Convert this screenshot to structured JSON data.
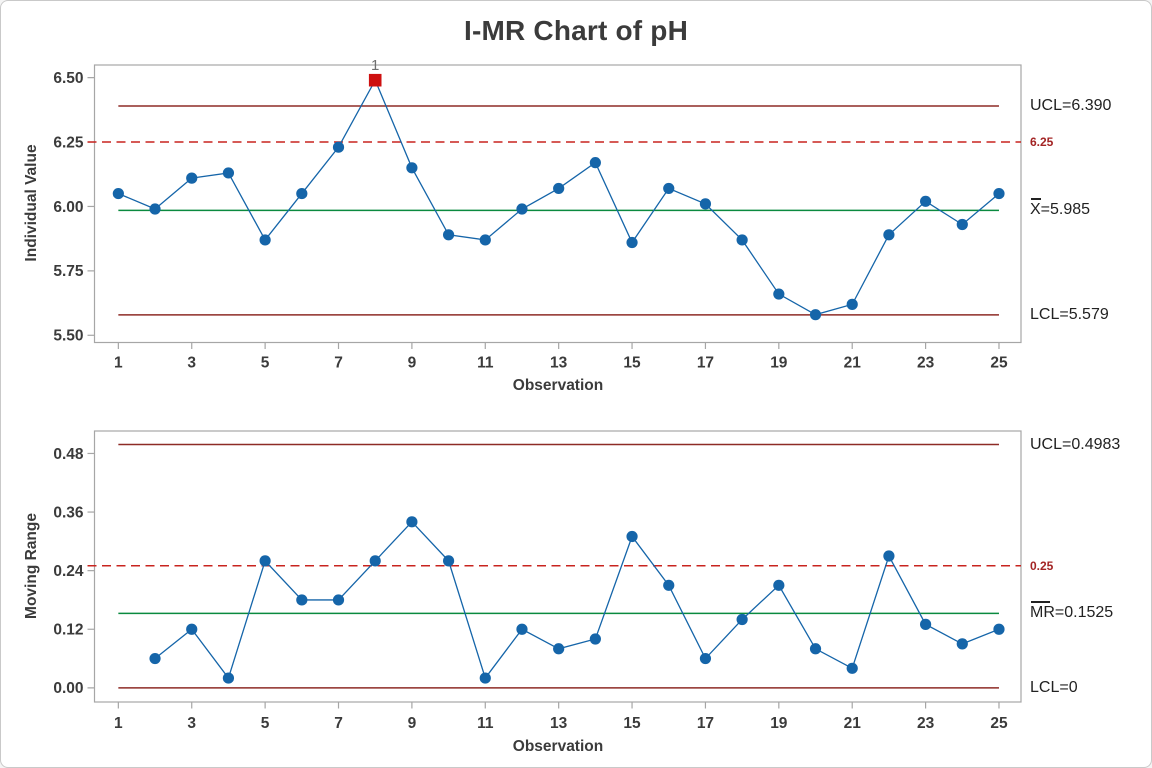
{
  "window": {
    "title": "I-MR Chart of pH"
  },
  "colors": {
    "series_blue": "#1565a9",
    "limit_dark_red": "#8e2b26",
    "reference_red": "#c8241f",
    "center_green": "#0a8a3f",
    "ooc_marker_red": "#ce1010",
    "ooc_label_gray": "#6f6f6f",
    "axis_gray": "#a6a6a6",
    "text_dark": "#3b3b3b",
    "annotation_text": "#222222",
    "red_label": "#a32424"
  },
  "chart_data": [
    {
      "type": "line",
      "name": "individuals",
      "ylabel": "Individual Value",
      "xlabel": "Observation",
      "x": [
        1,
        2,
        3,
        4,
        5,
        6,
        7,
        8,
        9,
        10,
        11,
        12,
        13,
        14,
        15,
        16,
        17,
        18,
        19,
        20,
        21,
        22,
        23,
        24,
        25
      ],
      "values": [
        6.05,
        5.99,
        6.11,
        6.13,
        5.87,
        6.05,
        6.23,
        6.49,
        6.15,
        5.89,
        5.87,
        5.99,
        6.07,
        6.17,
        5.86,
        6.07,
        6.01,
        5.87,
        5.66,
        5.58,
        5.62,
        5.89,
        6.02,
        5.93,
        6.05
      ],
      "center_line": 5.985,
      "ucl": 6.39,
      "lcl": 5.579,
      "reference_line": 6.25,
      "ylim": [
        5.472,
        6.549
      ],
      "xlim": [
        0.35,
        25.6
      ],
      "grid": false,
      "yticks": [
        {
          "v": 6.5,
          "label": "6.50"
        },
        {
          "v": 6.25,
          "label": "6.25"
        },
        {
          "v": 6.0,
          "label": "6.00"
        },
        {
          "v": 5.75,
          "label": "5.75"
        },
        {
          "v": 5.5,
          "label": "5.50"
        }
      ],
      "xticks": [
        {
          "v": 1,
          "label": "1"
        },
        {
          "v": 3,
          "label": "3"
        },
        {
          "v": 5,
          "label": "5"
        },
        {
          "v": 7,
          "label": "7"
        },
        {
          "v": 9,
          "label": "9"
        },
        {
          "v": 11,
          "label": "11"
        },
        {
          "v": 13,
          "label": "13"
        },
        {
          "v": 15,
          "label": "15"
        },
        {
          "v": 17,
          "label": "17"
        },
        {
          "v": 19,
          "label": "19"
        },
        {
          "v": 21,
          "label": "21"
        },
        {
          "v": 23,
          "label": "23"
        },
        {
          "v": 25,
          "label": "25"
        }
      ],
      "out_of_control_points": [
        {
          "x": 8,
          "value": 6.49,
          "label": "1"
        }
      ],
      "annotations": [
        {
          "name": "ucl-label",
          "text": "UCL=6.390",
          "v": 6.39,
          "style": "limit"
        },
        {
          "name": "reference-label",
          "text": "6.25",
          "v": 6.25,
          "style": "ref"
        },
        {
          "name": "center-label",
          "text": "X=5.985",
          "overline": "X",
          "v": 5.985,
          "style": "limit"
        },
        {
          "name": "lcl-label",
          "text": "LCL=5.579",
          "v": 5.579,
          "style": "limit"
        }
      ]
    },
    {
      "type": "line",
      "name": "moving-range",
      "ylabel": "Moving Range",
      "xlabel": "Observation",
      "x": [
        1,
        2,
        3,
        4,
        5,
        6,
        7,
        8,
        9,
        10,
        11,
        12,
        13,
        14,
        15,
        16,
        17,
        18,
        19,
        20,
        21,
        22,
        23,
        24,
        25
      ],
      "values": [
        null,
        0.06,
        0.12,
        0.02,
        0.26,
        0.18,
        0.18,
        0.26,
        0.34,
        0.26,
        0.02,
        0.12,
        0.08,
        0.1,
        0.31,
        0.21,
        0.06,
        0.14,
        0.21,
        0.08,
        0.04,
        0.27,
        0.13,
        0.09,
        0.12
      ],
      "center_line": 0.1525,
      "ucl": 0.4983,
      "lcl": 0,
      "reference_line": 0.25,
      "ylim": [
        -0.029,
        0.526
      ],
      "xlim": [
        0.35,
        25.6
      ],
      "grid": false,
      "yticks": [
        {
          "v": 0.48,
          "label": "0.48"
        },
        {
          "v": 0.36,
          "label": "0.36"
        },
        {
          "v": 0.24,
          "label": "0.24"
        },
        {
          "v": 0.12,
          "label": "0.12"
        },
        {
          "v": 0.0,
          "label": "0.00"
        }
      ],
      "xticks": [
        {
          "v": 1,
          "label": "1"
        },
        {
          "v": 3,
          "label": "3"
        },
        {
          "v": 5,
          "label": "5"
        },
        {
          "v": 7,
          "label": "7"
        },
        {
          "v": 9,
          "label": "9"
        },
        {
          "v": 11,
          "label": "11"
        },
        {
          "v": 13,
          "label": "13"
        },
        {
          "v": 15,
          "label": "15"
        },
        {
          "v": 17,
          "label": "17"
        },
        {
          "v": 19,
          "label": "19"
        },
        {
          "v": 21,
          "label": "21"
        },
        {
          "v": 23,
          "label": "23"
        },
        {
          "v": 25,
          "label": "25"
        }
      ],
      "out_of_control_points": [],
      "annotations": [
        {
          "name": "ucl-label",
          "text": "UCL=0.4983",
          "v": 0.4983,
          "style": "limit"
        },
        {
          "name": "reference-label",
          "text": "0.25",
          "v": 0.25,
          "style": "ref"
        },
        {
          "name": "center-label",
          "text": "MR=0.1525",
          "overline": "MR",
          "v": 0.1525,
          "style": "limit"
        },
        {
          "name": "lcl-label",
          "text": "LCL=0",
          "v": 0,
          "style": "limit"
        }
      ]
    }
  ]
}
